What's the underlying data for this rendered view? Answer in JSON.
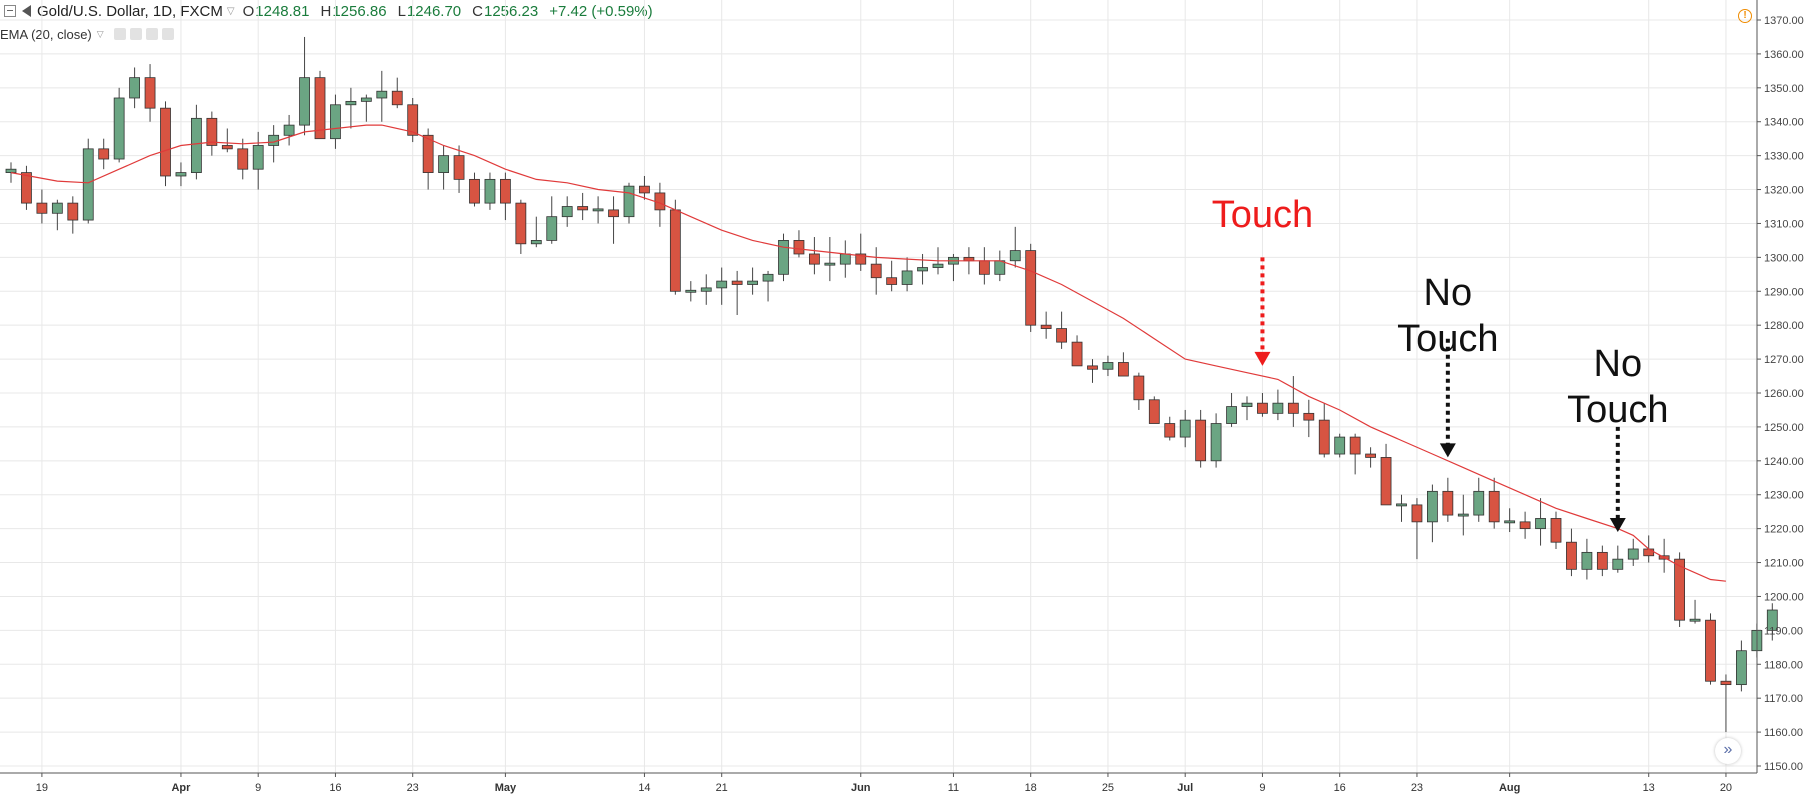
{
  "header": {
    "symbol": "Gold/U.S. Dollar, 1D, FXCM",
    "o_label": "O",
    "o_value": "1248.81",
    "h_label": "H",
    "h_value": "1256.86",
    "l_label": "L",
    "l_value": "1246.70",
    "c_label": "C",
    "c_value": "1256.23",
    "change": "+7.42 (+0.59%)"
  },
  "indicator": {
    "label": "EMA (20, close)"
  },
  "colors": {
    "up": "#6ba583",
    "down": "#d75442",
    "ema": "#e03a3a",
    "grid": "#e8e8e8",
    "touch": "#ee1c1c",
    "notouch": "#111111"
  },
  "chart_data": {
    "type": "candlestick",
    "title": "",
    "ylim": [
      1150,
      1370
    ],
    "y_ticks": [
      "1150.00",
      "1160.00",
      "1170.00",
      "1180.00",
      "1190.00",
      "1200.00",
      "1210.00",
      "1220.00",
      "1230.00",
      "1240.00",
      "1250.00",
      "1260.00",
      "1270.00",
      "1280.00",
      "1290.00",
      "1300.00",
      "1310.00",
      "1320.00",
      "1330.00",
      "1340.00",
      "1350.00",
      "1360.00",
      "1370.00"
    ],
    "x_ticks": [
      {
        "i": 2,
        "label": "19"
      },
      {
        "i": 11,
        "label": "Apr"
      },
      {
        "i": 16,
        "label": "9"
      },
      {
        "i": 21,
        "label": "16"
      },
      {
        "i": 26,
        "label": "23"
      },
      {
        "i": 32,
        "label": "May"
      },
      {
        "i": 41,
        "label": "14"
      },
      {
        "i": 46,
        "label": "21"
      },
      {
        "i": 55,
        "label": "Jun"
      },
      {
        "i": 61,
        "label": "11"
      },
      {
        "i": 66,
        "label": "18"
      },
      {
        "i": 71,
        "label": "25"
      },
      {
        "i": 76,
        "label": "Jul"
      },
      {
        "i": 81,
        "label": "9"
      },
      {
        "i": 86,
        "label": "16"
      },
      {
        "i": 91,
        "label": "23"
      },
      {
        "i": 97,
        "label": "Aug"
      },
      {
        "i": 106,
        "label": "13"
      },
      {
        "i": 111,
        "label": "20"
      }
    ],
    "candles": [
      [
        1325,
        1328,
        1322,
        1326
      ],
      [
        1325,
        1327,
        1314,
        1316
      ],
      [
        1316,
        1320,
        1310,
        1313
      ],
      [
        1313,
        1317,
        1308,
        1316
      ],
      [
        1316,
        1318,
        1307,
        1311
      ],
      [
        1311,
        1335,
        1310,
        1332
      ],
      [
        1332,
        1335,
        1326,
        1329
      ],
      [
        1329,
        1350,
        1328,
        1347
      ],
      [
        1347,
        1356,
        1344,
        1353
      ],
      [
        1353,
        1357,
        1340,
        1344
      ],
      [
        1344,
        1346,
        1321,
        1324
      ],
      [
        1324,
        1328,
        1321,
        1325
      ],
      [
        1325,
        1345,
        1323,
        1341
      ],
      [
        1341,
        1343,
        1330,
        1333
      ],
      [
        1333,
        1338,
        1331,
        1332
      ],
      [
        1332,
        1335,
        1323,
        1326
      ],
      [
        1326,
        1337,
        1320,
        1333
      ],
      [
        1333,
        1339,
        1328,
        1336
      ],
      [
        1336,
        1342,
        1333,
        1339
      ],
      [
        1339,
        1365,
        1336,
        1353
      ],
      [
        1353,
        1355,
        1335,
        1335
      ],
      [
        1335,
        1348,
        1332,
        1345
      ],
      [
        1345,
        1350,
        1338,
        1346
      ],
      [
        1346,
        1348,
        1340,
        1347
      ],
      [
        1347,
        1355,
        1340,
        1349
      ],
      [
        1349,
        1353,
        1344,
        1345
      ],
      [
        1345,
        1347,
        1334,
        1336
      ],
      [
        1336,
        1338,
        1320,
        1325
      ],
      [
        1325,
        1333,
        1320,
        1330
      ],
      [
        1330,
        1333,
        1319,
        1323
      ],
      [
        1323,
        1325,
        1315,
        1316
      ],
      [
        1316,
        1325,
        1314,
        1323
      ],
      [
        1323,
        1325,
        1311,
        1316
      ],
      [
        1316,
        1317,
        1301,
        1304
      ],
      [
        1304,
        1312,
        1303,
        1305
      ],
      [
        1305,
        1318,
        1304,
        1312
      ],
      [
        1312,
        1318,
        1309,
        1315
      ],
      [
        1315,
        1319,
        1311,
        1314
      ],
      [
        1314,
        1318,
        1310,
        1314
      ],
      [
        1314,
        1318,
        1304,
        1312
      ],
      [
        1312,
        1322,
        1310,
        1321
      ],
      [
        1321,
        1324,
        1317,
        1319
      ],
      [
        1319,
        1322,
        1309,
        1314
      ],
      [
        1314,
        1317,
        1289,
        1290
      ],
      [
        1290,
        1293,
        1287,
        1290
      ],
      [
        1290,
        1295,
        1286,
        1291
      ],
      [
        1291,
        1297,
        1286,
        1293
      ],
      [
        1293,
        1296,
        1283,
        1292
      ],
      [
        1292,
        1297,
        1289,
        1293
      ],
      [
        1293,
        1296,
        1287,
        1295
      ],
      [
        1295,
        1307,
        1293,
        1305
      ],
      [
        1305,
        1308,
        1300,
        1301
      ],
      [
        1301,
        1306,
        1295,
        1298
      ],
      [
        1298,
        1306,
        1293,
        1298
      ],
      [
        1298,
        1305,
        1294,
        1301
      ],
      [
        1301,
        1307,
        1296,
        1298
      ],
      [
        1298,
        1303,
        1289,
        1294
      ],
      [
        1294,
        1299,
        1290,
        1292
      ],
      [
        1292,
        1300,
        1290,
        1296
      ],
      [
        1296,
        1301,
        1292,
        1297
      ],
      [
        1297,
        1303,
        1295,
        1298
      ],
      [
        1298,
        1301,
        1293,
        1300
      ],
      [
        1300,
        1303,
        1295,
        1299
      ],
      [
        1299,
        1303,
        1292,
        1295
      ],
      [
        1295,
        1302,
        1293,
        1299
      ],
      [
        1299,
        1309,
        1297,
        1302
      ],
      [
        1302,
        1304,
        1278,
        1280
      ],
      [
        1280,
        1284,
        1276,
        1279
      ],
      [
        1279,
        1284,
        1273,
        1275
      ],
      [
        1275,
        1277,
        1270,
        1268
      ],
      [
        1268,
        1270,
        1263,
        1267
      ],
      [
        1267,
        1271,
        1265,
        1269
      ],
      [
        1269,
        1272,
        1265,
        1265
      ],
      [
        1265,
        1266,
        1255,
        1258
      ],
      [
        1258,
        1259,
        1251,
        1251
      ],
      [
        1251,
        1253,
        1246,
        1247
      ],
      [
        1247,
        1255,
        1244,
        1252
      ],
      [
        1252,
        1255,
        1238,
        1240
      ],
      [
        1240,
        1254,
        1238,
        1251
      ],
      [
        1251,
        1260,
        1250,
        1256
      ],
      [
        1256,
        1259,
        1252,
        1257
      ],
      [
        1257,
        1260,
        1253,
        1254
      ],
      [
        1254,
        1261,
        1252,
        1257
      ],
      [
        1257,
        1265,
        1250,
        1254
      ],
      [
        1254,
        1258,
        1247,
        1252
      ],
      [
        1252,
        1257,
        1241,
        1242
      ],
      [
        1242,
        1248,
        1241,
        1247
      ],
      [
        1247,
        1248,
        1236,
        1242
      ],
      [
        1242,
        1244,
        1238,
        1241
      ],
      [
        1241,
        1245,
        1227,
        1227
      ],
      [
        1227,
        1230,
        1222,
        1227
      ],
      [
        1227,
        1229,
        1211,
        1222
      ],
      [
        1222,
        1233,
        1216,
        1231
      ],
      [
        1231,
        1235,
        1222,
        1224
      ],
      [
        1224,
        1230,
        1218,
        1224
      ],
      [
        1224,
        1235,
        1222,
        1231
      ],
      [
        1231,
        1235,
        1220,
        1222
      ],
      [
        1222,
        1226,
        1219,
        1222
      ],
      [
        1222,
        1225,
        1217,
        1220
      ],
      [
        1220,
        1229,
        1215,
        1223
      ],
      [
        1223,
        1225,
        1214,
        1216
      ],
      [
        1216,
        1220,
        1206,
        1208
      ],
      [
        1208,
        1217,
        1205,
        1213
      ],
      [
        1213,
        1215,
        1206,
        1208
      ],
      [
        1208,
        1215,
        1207,
        1211
      ],
      [
        1211,
        1217,
        1209,
        1214
      ],
      [
        1214,
        1218,
        1210,
        1212
      ],
      [
        1212,
        1217,
        1207,
        1211
      ],
      [
        1211,
        1213,
        1191,
        1193
      ],
      [
        1193,
        1199,
        1192,
        1193
      ],
      [
        1193,
        1195,
        1174,
        1175
      ],
      [
        1175,
        1177,
        1160,
        1174
      ],
      [
        1174,
        1187,
        1172,
        1184
      ],
      [
        1184,
        1192,
        1182,
        1190
      ],
      [
        1190,
        1198,
        1187,
        1196
      ]
    ],
    "ema": [
      [
        0,
        1325
      ],
      [
        3,
        1322.5
      ],
      [
        5,
        1322
      ],
      [
        7,
        1326
      ],
      [
        9,
        1330
      ],
      [
        11,
        1333
      ],
      [
        13,
        1334
      ],
      [
        15,
        1333.5
      ],
      [
        17,
        1334
      ],
      [
        19,
        1337
      ],
      [
        21,
        1338
      ],
      [
        23,
        1339
      ],
      [
        24,
        1339
      ],
      [
        26,
        1337
      ],
      [
        28,
        1333
      ],
      [
        30,
        1330
      ],
      [
        32,
        1326
      ],
      [
        34,
        1323
      ],
      [
        36,
        1322
      ],
      [
        38,
        1320
      ],
      [
        40,
        1319
      ],
      [
        42,
        1316
      ],
      [
        44,
        1312
      ],
      [
        46,
        1308
      ],
      [
        48,
        1305
      ],
      [
        50,
        1303
      ],
      [
        52,
        1302
      ],
      [
        54,
        1301
      ],
      [
        56,
        1300
      ],
      [
        58,
        1299.5
      ],
      [
        60,
        1299
      ],
      [
        62,
        1299
      ],
      [
        64,
        1299
      ],
      [
        66,
        1296
      ],
      [
        68,
        1292
      ],
      [
        70,
        1287
      ],
      [
        72,
        1282
      ],
      [
        74,
        1276
      ],
      [
        76,
        1270
      ],
      [
        78,
        1268
      ],
      [
        80,
        1266
      ],
      [
        82,
        1264
      ],
      [
        84,
        1259
      ],
      [
        86,
        1255
      ],
      [
        88,
        1250
      ],
      [
        90,
        1246
      ],
      [
        92,
        1242
      ],
      [
        94,
        1238
      ],
      [
        96,
        1234
      ],
      [
        98,
        1230
      ],
      [
        100,
        1226
      ],
      [
        102,
        1223
      ],
      [
        104,
        1220
      ],
      [
        105,
        1218
      ],
      [
        106,
        1214
      ],
      [
        108,
        1209
      ],
      [
        110,
        1205
      ],
      [
        111,
        1204.5
      ]
    ],
    "annotations": [
      {
        "text": "Touch",
        "kind": "touch",
        "lines": [
          "Touch"
        ],
        "x_index": 81,
        "label_y": 1309,
        "arrow_from": 1300,
        "arrow_to": 1268
      },
      {
        "text": "No Touch",
        "kind": "notouch",
        "lines": [
          "No",
          "Touch"
        ],
        "x_index": 93,
        "label_y": 1286,
        "arrow_from": 1276,
        "arrow_to": 1241
      },
      {
        "text": "No Touch",
        "kind": "notouch",
        "lines": [
          "No",
          "Touch"
        ],
        "x_index": 104,
        "label_y": 1265,
        "arrow_from": 1250,
        "arrow_to": 1219
      }
    ]
  }
}
